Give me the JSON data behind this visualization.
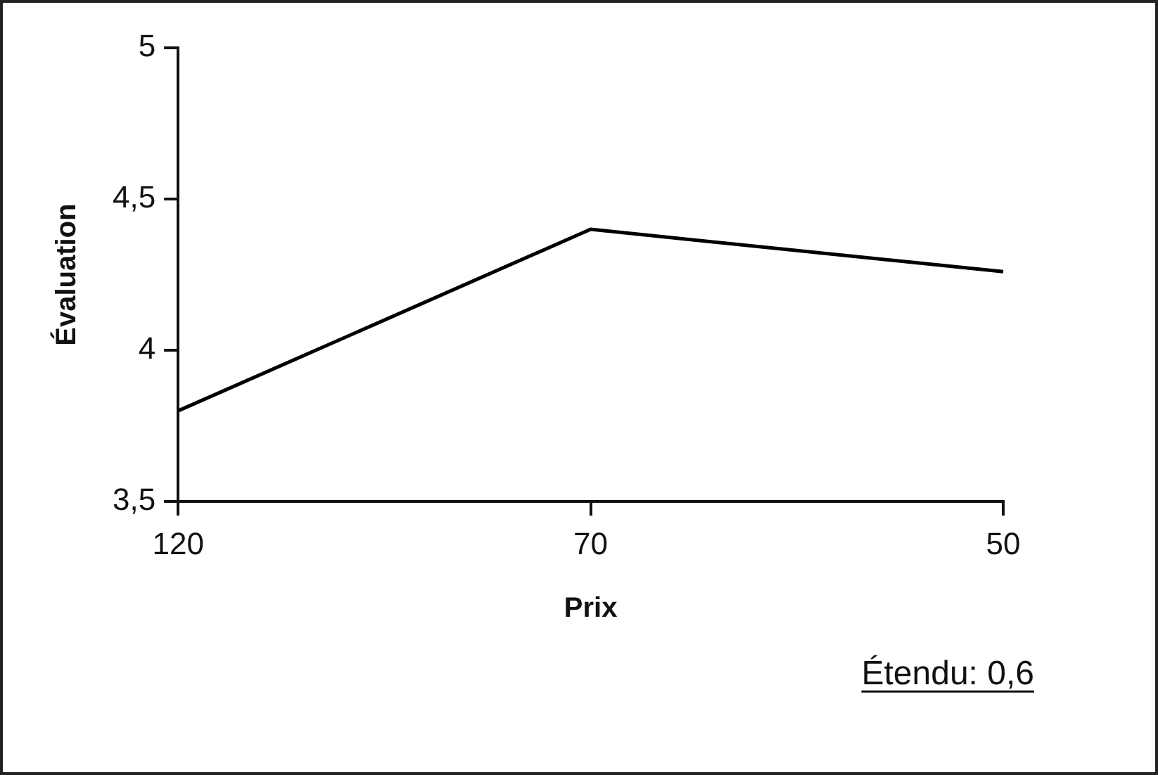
{
  "chart_data": {
    "type": "line",
    "xlabel": "Prix",
    "ylabel": "Évaluation",
    "categories": [
      "120",
      "70",
      "50"
    ],
    "values": [
      3.8,
      4.4,
      4.26
    ],
    "color": "#000000",
    "ylim": [
      3.5,
      5
    ],
    "yticks": [
      {
        "value": 3.5,
        "label": "3,5"
      },
      {
        "value": 4,
        "label": "4"
      },
      {
        "value": 4.5,
        "label": "4,5"
      },
      {
        "value": 5,
        "label": "5"
      }
    ],
    "grid": false,
    "legend": false,
    "marker": "none",
    "line_style": "solid",
    "annotations": [
      "Étendu: 0,6"
    ]
  }
}
